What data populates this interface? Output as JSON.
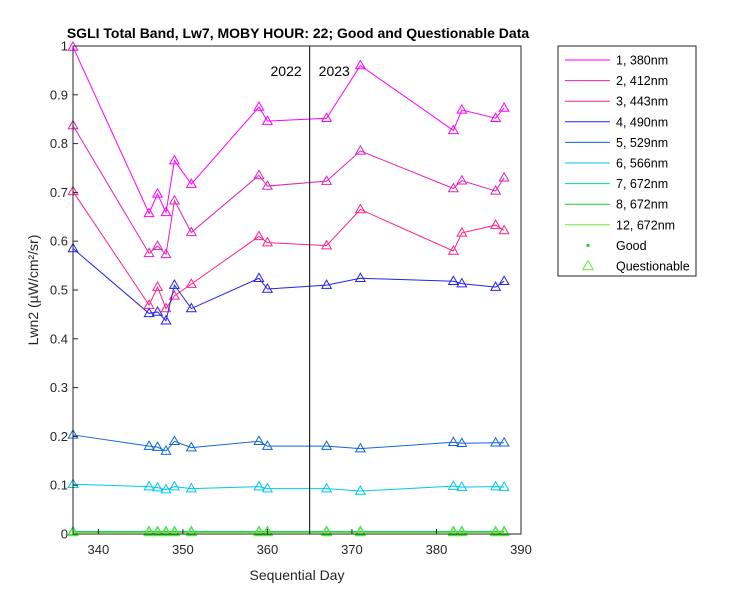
{
  "chart_data": {
    "type": "line",
    "title": "SGLI Total Band, Lw7, MOBY HOUR: 22;  Good and Questionable Data",
    "xlabel": "Sequential Day",
    "ylabel": "Lwn2 (µW/cm²/sr)",
    "xlim": [
      337,
      390
    ],
    "ylim": [
      0,
      1
    ],
    "xticks": [
      340,
      350,
      360,
      370,
      380,
      390
    ],
    "yticks": [
      0,
      0.1,
      0.2,
      0.3,
      0.4,
      0.5,
      0.6,
      0.7,
      0.8,
      0.9,
      1
    ],
    "grid": false,
    "legend_position": "outside-top-right",
    "year_divider": {
      "x": 365,
      "left_label": "2022",
      "right_label": "2023"
    },
    "x": [
      337,
      346,
      347,
      348,
      349,
      351,
      359,
      360,
      367,
      371,
      382,
      383,
      387,
      388
    ],
    "series": [
      {
        "name": "1, 380nm",
        "color": "#ff00ff",
        "values": [
          0.998,
          0.657,
          0.697,
          0.659,
          0.765,
          0.717,
          0.875,
          0.846,
          0.852,
          0.96,
          0.827,
          0.869,
          0.852,
          0.873
        ]
      },
      {
        "name": "2, 412nm",
        "color": "#dd22bb",
        "values": [
          0.837,
          0.575,
          0.59,
          0.573,
          0.683,
          0.618,
          0.735,
          0.713,
          0.723,
          0.785,
          0.708,
          0.724,
          0.703,
          0.73
        ]
      },
      {
        "name": "3, 443nm",
        "color": "#ff2288",
        "values": [
          0.702,
          0.469,
          0.506,
          0.462,
          0.488,
          0.512,
          0.61,
          0.597,
          0.591,
          0.665,
          0.58,
          0.617,
          0.633,
          0.622
        ]
      },
      {
        "name": "4, 490nm",
        "color": "#2222ee",
        "values": [
          0.585,
          0.452,
          0.455,
          0.437,
          0.51,
          0.462,
          0.524,
          0.502,
          0.51,
          0.524,
          0.518,
          0.513,
          0.506,
          0.518
        ]
      },
      {
        "name": "5, 529nm",
        "color": "#1166dd",
        "values": [
          0.203,
          0.18,
          0.178,
          0.17,
          0.19,
          0.177,
          0.19,
          0.18,
          0.18,
          0.175,
          0.188,
          0.186,
          0.187,
          0.187
        ]
      },
      {
        "name": "6, 566nm",
        "color": "#00c8ee",
        "values": [
          0.102,
          0.097,
          0.095,
          0.091,
          0.097,
          0.093,
          0.097,
          0.093,
          0.093,
          0.088,
          0.098,
          0.096,
          0.097,
          0.096
        ]
      },
      {
        "name": "7, 672nm",
        "color": "#00dd99",
        "values": [
          0.005,
          0.005,
          0.005,
          0.005,
          0.005,
          0.005,
          0.005,
          0.005,
          0.005,
          0.005,
          0.005,
          0.005,
          0.005,
          0.005
        ]
      },
      {
        "name": "8, 672nm",
        "color": "#22cc22",
        "values": [
          0.004,
          0.004,
          0.004,
          0.004,
          0.004,
          0.004,
          0.004,
          0.004,
          0.004,
          0.004,
          0.004,
          0.004,
          0.004,
          0.004
        ]
      },
      {
        "name": "12, 672nm",
        "color": "#66ee33",
        "values": [
          0.003,
          0.003,
          0.003,
          0.003,
          0.003,
          0.003,
          0.003,
          0.003,
          0.003,
          0.003,
          0.003,
          0.003,
          0.003,
          0.003
        ]
      }
    ],
    "marker_legend": [
      {
        "label": "Good",
        "marker": "dot",
        "color": "#22cc22"
      },
      {
        "label": "Questionable",
        "marker": "triangle",
        "color": "#66ee33"
      }
    ]
  }
}
